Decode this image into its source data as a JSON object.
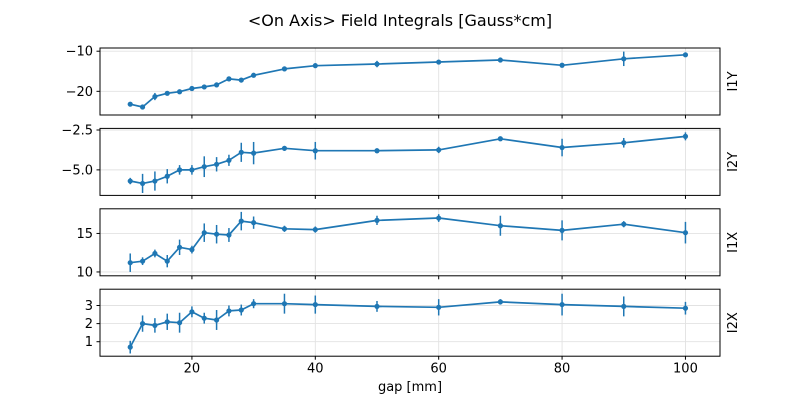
{
  "colors": {
    "line": "#1f77b4",
    "grid": "#e2e2e2",
    "spine": "#000000",
    "text": "#000000",
    "background": "#ffffff"
  },
  "chart_data": {
    "type": "line",
    "title": "<On Axis> Field Integrals [Gauss*cm]",
    "xlabel": "gap [mm]",
    "legend": "none",
    "grid": true,
    "marker": "o",
    "error_bars": true,
    "x": [
      10,
      12,
      14,
      16,
      18,
      20,
      22,
      24,
      26,
      28,
      30,
      35,
      40,
      50,
      60,
      70,
      80,
      90,
      100
    ],
    "xlim": [
      5.1,
      105.6
    ],
    "xticks": [
      20,
      40,
      60,
      80,
      100
    ],
    "xtick_labels": [
      "20",
      "40",
      "60",
      "80",
      "100"
    ],
    "subplots": [
      {
        "label": "I1Y",
        "ylim": [
          -25.9,
          -9.2
        ],
        "yticks": [
          -20,
          -10
        ],
        "ytick_labels": [
          "−20",
          "−10"
        ],
        "values": [
          -23.2,
          -23.9,
          -21.3,
          -20.5,
          -20.1,
          -19.3,
          -18.9,
          -18.4,
          -16.9,
          -17.2,
          -16.0,
          -14.4,
          -13.6,
          -13.2,
          -12.7,
          -12.2,
          -13.5,
          -11.9,
          -10.9
        ],
        "errors": [
          0.3,
          0.6,
          0.9,
          0.4,
          0.35,
          0.3,
          0.3,
          0.5,
          0.35,
          0.4,
          0.35,
          0.3,
          0.3,
          0.8,
          0.5,
          0.25,
          0.4,
          1.8,
          0.5
        ]
      },
      {
        "label": "I2Y",
        "ylim": [
          -6.6,
          -2.4
        ],
        "yticks": [
          -5.0,
          -2.5
        ],
        "ytick_labels": [
          "−5.0",
          "−2.5"
        ],
        "values": [
          -5.7,
          -5.85,
          -5.7,
          -5.4,
          -5.0,
          -5.0,
          -4.8,
          -4.65,
          -4.4,
          -3.9,
          -3.95,
          -3.65,
          -3.8,
          -3.8,
          -3.75,
          -3.05,
          -3.6,
          -3.3,
          -2.9
        ],
        "errors": [
          0.2,
          0.6,
          0.6,
          0.45,
          0.3,
          0.3,
          0.65,
          0.45,
          0.35,
          0.6,
          0.7,
          0.15,
          0.55,
          0.15,
          0.2,
          0.1,
          0.55,
          0.3,
          0.25
        ]
      },
      {
        "label": "I1X",
        "ylim": [
          9.5,
          18.2
        ],
        "yticks": [
          10,
          15
        ],
        "ytick_labels": [
          "10",
          "15"
        ],
        "values": [
          11.2,
          11.4,
          12.4,
          11.4,
          13.2,
          12.9,
          15.1,
          14.9,
          14.8,
          16.6,
          16.4,
          15.6,
          15.5,
          16.7,
          17.0,
          16.0,
          15.4,
          16.2,
          15.1
        ],
        "errors": [
          1.2,
          0.5,
          0.5,
          0.8,
          1.0,
          0.5,
          1.2,
          1.2,
          0.9,
          1.2,
          0.8,
          0.4,
          0.4,
          0.6,
          0.5,
          1.3,
          1.3,
          0.4,
          1.4
        ]
      },
      {
        "label": "I2X",
        "ylim": [
          0.2,
          3.9
        ],
        "yticks": [
          1,
          2,
          3
        ],
        "ytick_labels": [
          "1",
          "2",
          "3"
        ],
        "values": [
          0.7,
          2.0,
          1.9,
          2.1,
          2.05,
          2.65,
          2.3,
          2.2,
          2.7,
          2.75,
          3.1,
          3.1,
          3.05,
          2.95,
          2.9,
          3.2,
          3.05,
          2.95,
          2.85
        ],
        "errors": [
          0.35,
          0.45,
          0.4,
          0.45,
          0.55,
          0.3,
          0.3,
          0.55,
          0.3,
          0.3,
          0.25,
          0.55,
          0.5,
          0.3,
          0.45,
          0.15,
          0.6,
          0.55,
          0.35
        ]
      }
    ]
  }
}
